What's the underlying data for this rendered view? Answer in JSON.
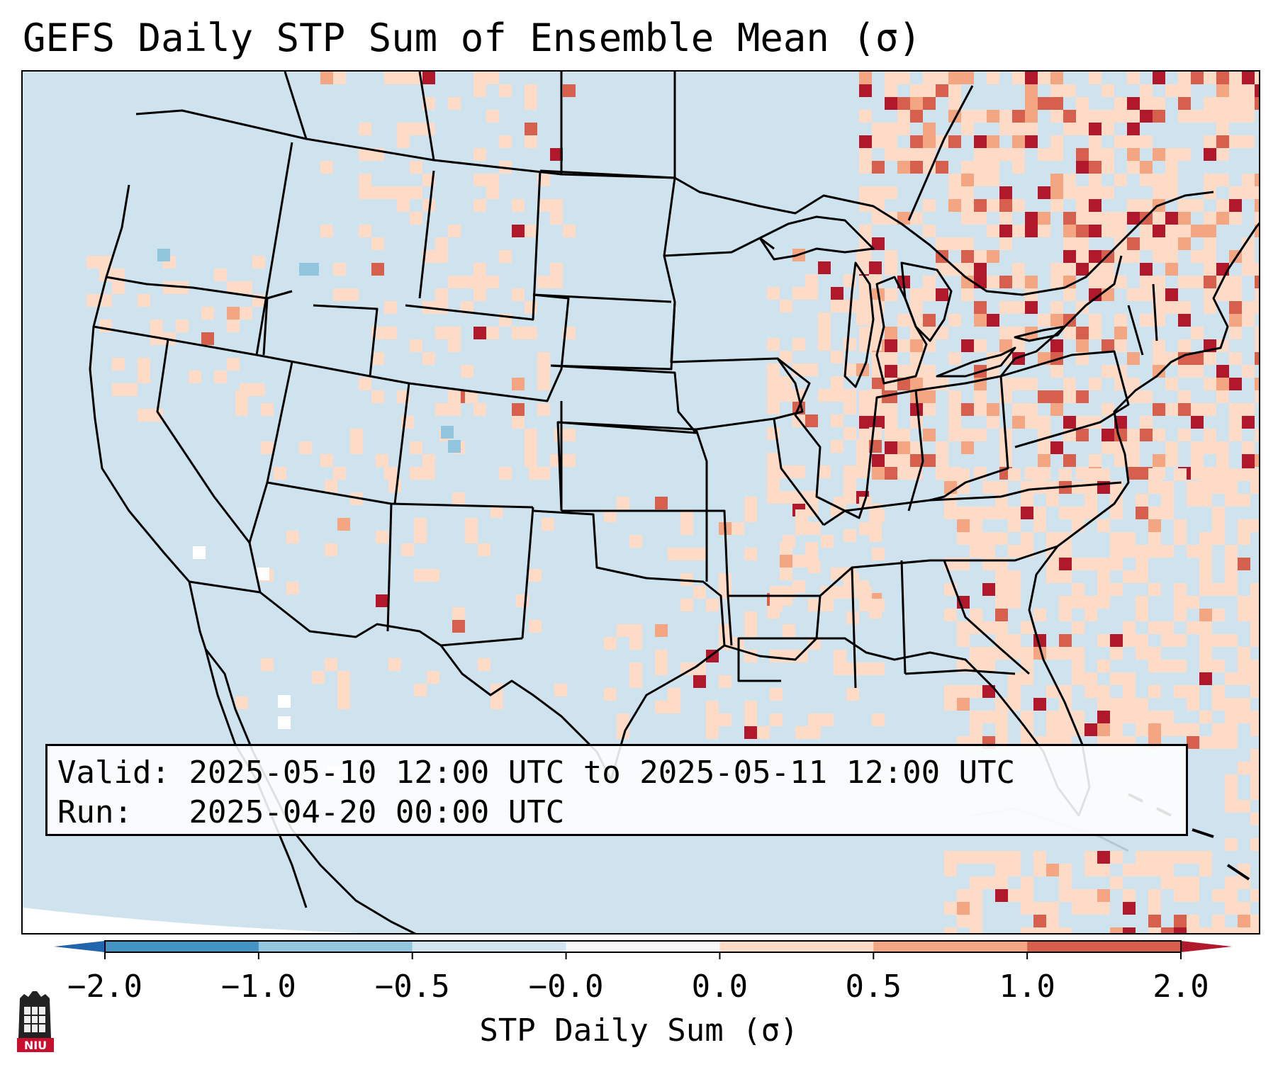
{
  "title": "GEFS Daily STP Sum of Ensemble Mean (σ)",
  "info": {
    "valid_label": "Valid:",
    "valid_text": "2025-05-10 12:00 UTC to 2025-05-11 12:00 UTC",
    "run_label": "Run:",
    "run_text": "2025-04-20 00:00 UTC"
  },
  "colorbar": {
    "label": "STP Daily Sum (σ)",
    "ticks": [
      "−2.0",
      "−1.0",
      "−0.5",
      "−0.0",
      "0.0",
      "0.5",
      "1.0",
      "2.0"
    ],
    "bins": [
      {
        "range": [
          -2.0,
          -1.0
        ],
        "color": "#4393c3"
      },
      {
        "range": [
          -1.0,
          -0.5
        ],
        "color": "#92c5de"
      },
      {
        "range": [
          -0.5,
          -0.0
        ],
        "color": "#d1e5f0"
      },
      {
        "range": [
          -0.0,
          0.0
        ],
        "color": "#f7f7f7"
      },
      {
        "range": [
          0.0,
          0.5
        ],
        "color": "#fddbc7"
      },
      {
        "range": [
          0.5,
          1.0
        ],
        "color": "#f4a582"
      },
      {
        "range": [
          1.0,
          2.0
        ],
        "color": "#d6604d"
      }
    ],
    "under_color": "#2166ac",
    "over_color": "#b2182b"
  },
  "map": {
    "projection": "Lambert Conformal (CONUS)",
    "background_color": "#d1e5f0",
    "coastline_color": "#000000"
  },
  "logo": {
    "text": "NIU",
    "color": "#c8102e"
  }
}
